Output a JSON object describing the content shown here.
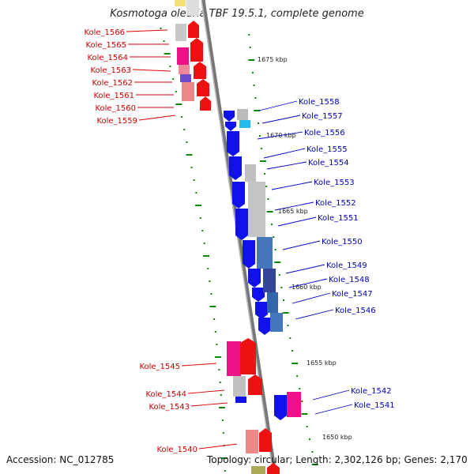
{
  "title": "Kosmotoga olearia TBF 19.5.1, complete genome",
  "accession": "Accession: NC_012785",
  "summary": "Topology: circular; Length: 2,302,126 bp; Genes: 2,170",
  "colors": {
    "left_label": "#dd0000",
    "right_label": "#0000bb",
    "backbone": "#888888",
    "tick": "#008800"
  },
  "left_genes": [
    "Kole_1566",
    "Kole_1565",
    "Kole_1564",
    "Kole_1563",
    "Kole_1562",
    "Kole_1561",
    "Kole_1560",
    "Kole_1559",
    "Kole_1545",
    "Kole_1544",
    "Kole_1543",
    "Kole_1540"
  ],
  "right_genes": [
    "Kole_1558",
    "Kole_1557",
    "Kole_1556",
    "Kole_1555",
    "Kole_1554",
    "Kole_1553",
    "Kole_1552",
    "Kole_1551",
    "Kole_1550",
    "Kole_1549",
    "Kole_1548",
    "Kole_1547",
    "Kole_1546",
    "Kole_1542",
    "Kole_1541"
  ],
  "kbp_marks": [
    "1675 kbp",
    "1670 kbp",
    "1665 kbp",
    "1660 kbp",
    "1655 kbp",
    "1650 kbp"
  ]
}
